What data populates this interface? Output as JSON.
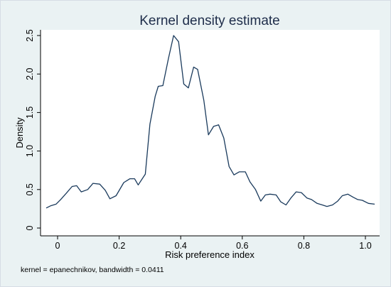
{
  "chart_data": {
    "type": "line",
    "title": "Kernel density estimate",
    "xlabel": "Risk preference index",
    "ylabel": "Density",
    "note": "kernel = epanechnikov, bandwidth = 0.0411",
    "xlim": [
      -0.04,
      1.04
    ],
    "ylim": [
      0,
      2.5
    ],
    "xticks": [
      0,
      0.2,
      0.4,
      0.6,
      0.8,
      1.0
    ],
    "xtick_labels": [
      "0",
      "0.2",
      "0.4",
      "0.6",
      "0.8",
      "1.0"
    ],
    "yticks": [
      0,
      0.5,
      1.0,
      1.5,
      2.0,
      2.5
    ],
    "ytick_labels": [
      "0",
      "0.5",
      "1.0",
      "1.5",
      "2.0",
      "2.5"
    ],
    "grid": false,
    "line_color": "#1a3a5c",
    "series": [
      {
        "x": [
          -0.037,
          -0.022,
          -0.005,
          0.01,
          0.028,
          0.047,
          0.062,
          0.077,
          0.098,
          0.115,
          0.137,
          0.155,
          0.17,
          0.19,
          0.215,
          0.235,
          0.25,
          0.262,
          0.285,
          0.3,
          0.317,
          0.327,
          0.342,
          0.36,
          0.377,
          0.393,
          0.41,
          0.425,
          0.442,
          0.455,
          0.475,
          0.49,
          0.507,
          0.523,
          0.54,
          0.557,
          0.573,
          0.59,
          0.61,
          0.625,
          0.643,
          0.66,
          0.675,
          0.69,
          0.71,
          0.725,
          0.742,
          0.758,
          0.775,
          0.792,
          0.81,
          0.825,
          0.843,
          0.86,
          0.875,
          0.893,
          0.91,
          0.925,
          0.943,
          0.96,
          0.975,
          0.99,
          1.01,
          1.03
        ],
        "y": [
          0.26,
          0.29,
          0.31,
          0.37,
          0.45,
          0.54,
          0.55,
          0.47,
          0.5,
          0.58,
          0.57,
          0.49,
          0.38,
          0.42,
          0.59,
          0.64,
          0.64,
          0.56,
          0.7,
          1.35,
          1.71,
          1.84,
          1.85,
          2.2,
          2.5,
          2.42,
          1.87,
          1.82,
          2.09,
          2.06,
          1.66,
          1.21,
          1.32,
          1.34,
          1.17,
          0.8,
          0.69,
          0.73,
          0.73,
          0.6,
          0.5,
          0.35,
          0.43,
          0.44,
          0.43,
          0.34,
          0.3,
          0.39,
          0.47,
          0.46,
          0.39,
          0.37,
          0.32,
          0.3,
          0.28,
          0.3,
          0.35,
          0.42,
          0.44,
          0.4,
          0.37,
          0.36,
          0.32,
          0.31
        ]
      }
    ]
  }
}
